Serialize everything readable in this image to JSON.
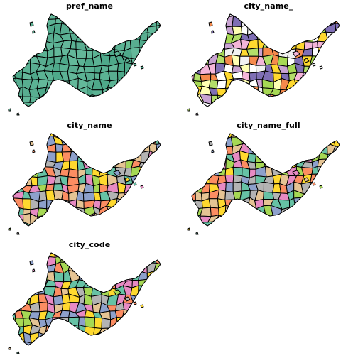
{
  "facets": [
    {
      "title": "pref_name",
      "palette": [
        "#5bb394",
        "#4ea98a",
        "#63b89a",
        "#58ad90"
      ]
    },
    {
      "title": "city_name_",
      "palette": [
        "#ffffff",
        "#f4b5d8",
        "#c8a2d2",
        "#f58a4c",
        "#ffd92f",
        "#a6d854",
        "#7f6fb5",
        "#f2f2f2",
        "#ffffb3",
        "#b3de69"
      ]
    },
    {
      "title": "city_name",
      "palette": [
        "#66c2a5",
        "#fc8d62",
        "#8da0cb",
        "#e78ac3",
        "#a6d854",
        "#ffd92f",
        "#e5c494",
        "#b3b3b3"
      ]
    },
    {
      "title": "city_name_full",
      "palette": [
        "#66c2a5",
        "#fc8d62",
        "#8da0cb",
        "#e78ac3",
        "#a6d854",
        "#ffd92f",
        "#e5c494",
        "#b3b3b3"
      ]
    },
    {
      "title": "city_code",
      "palette": [
        "#8da0cb",
        "#66c2a5",
        "#fc8d62",
        "#e78ac3",
        "#a6d854",
        "#ffd92f",
        "#e5c494",
        "#b3b3b3"
      ]
    }
  ]
}
